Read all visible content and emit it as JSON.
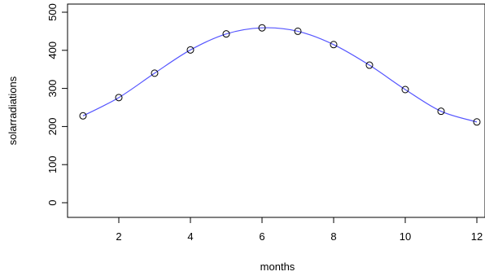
{
  "chart_data": {
    "type": "line",
    "title": "",
    "xlabel": "months",
    "ylabel": "solarradiations",
    "xlim": [
      1,
      12
    ],
    "ylim": [
      0,
      500
    ],
    "x_ticks": [
      "2",
      "4",
      "6",
      "8",
      "10",
      "12"
    ],
    "y_ticks": [
      "0",
      "100",
      "200",
      "300",
      "400",
      "500"
    ],
    "grid": false,
    "series": [
      {
        "style": "points",
        "marker": "open-circle",
        "color": "#000000",
        "x": [
          1,
          2,
          3,
          4,
          5,
          6,
          7,
          8,
          9,
          10,
          11,
          12
        ],
        "y": [
          228,
          276,
          340,
          401,
          443,
          459,
          450,
          415,
          361,
          297,
          240,
          212
        ]
      },
      {
        "style": "smooth-line",
        "color": "#5555ff",
        "x": [
          1,
          2,
          3,
          4,
          5,
          6,
          7,
          8,
          9,
          10,
          11,
          12
        ],
        "y": [
          228,
          276,
          340,
          401,
          443,
          459,
          450,
          415,
          361,
          297,
          240,
          212
        ]
      }
    ]
  }
}
